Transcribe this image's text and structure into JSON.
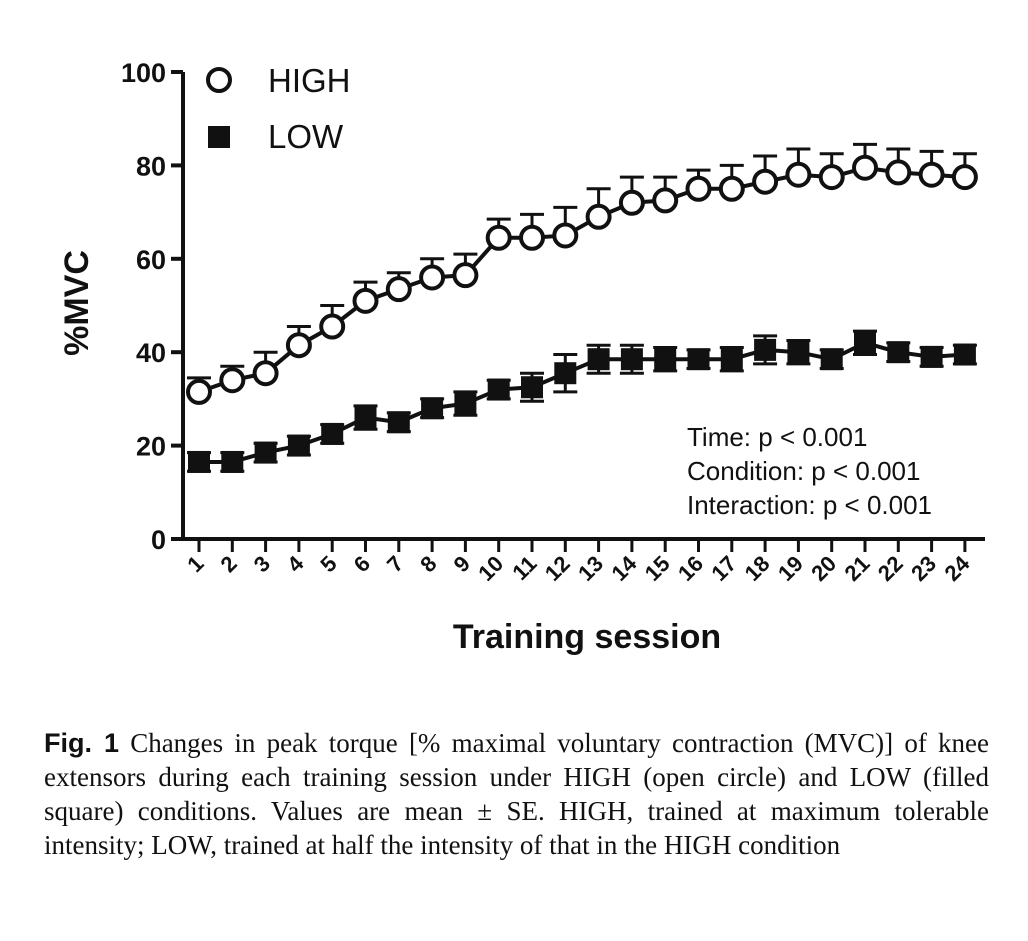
{
  "chart_data": {
    "type": "line",
    "xlabel": "Training session",
    "ylabel": "%MVC",
    "ylim": [
      0,
      100
    ],
    "yticks": [
      0,
      20,
      40,
      60,
      80,
      100
    ],
    "x": [
      1,
      2,
      3,
      4,
      5,
      6,
      7,
      8,
      9,
      10,
      11,
      12,
      13,
      14,
      15,
      16,
      17,
      18,
      19,
      20,
      21,
      22,
      23,
      24
    ],
    "series": [
      {
        "name": "HIGH",
        "marker": "open-circle",
        "values": [
          31.5,
          34,
          35.5,
          41.5,
          45.5,
          51,
          53.5,
          56,
          56.5,
          64.5,
          64.5,
          65,
          69,
          72,
          72.5,
          75,
          75,
          76.5,
          78,
          77.5,
          79.5,
          78.5,
          78,
          77.5
        ],
        "se": [
          3,
          3,
          4.5,
          4,
          4.5,
          4,
          3.5,
          4,
          4.5,
          4,
          5,
          6,
          6,
          5.5,
          5,
          4,
          5,
          5.5,
          5.5,
          5,
          5,
          5,
          5,
          5
        ]
      },
      {
        "name": "LOW",
        "marker": "filled-square",
        "values": [
          16.5,
          16.5,
          18.5,
          20,
          22.5,
          26,
          25,
          28,
          29,
          32,
          32.5,
          35.5,
          38.5,
          38.5,
          38.5,
          38.5,
          38.5,
          40.5,
          40,
          38.5,
          42,
          40,
          39,
          39.5
        ],
        "se": [
          2,
          2,
          2,
          2,
          2,
          2.5,
          2,
          2,
          2.5,
          2,
          3,
          4,
          3,
          3,
          2.5,
          2,
          2.5,
          3,
          2.5,
          2,
          2.5,
          2,
          2,
          2
        ]
      }
    ],
    "legend": {
      "placement": "top-left",
      "entries": [
        "HIGH",
        "LOW"
      ]
    },
    "annotations": [
      "Time: p < 0.001",
      "Condition: p < 0.001",
      "Interaction: p < 0.001"
    ],
    "grid": false
  },
  "caption": {
    "label": "Fig. 1",
    "text": "Changes in peak torque [% maximal voluntary contraction (MVC)] of knee extensors during each training session under HIGH (open circle) and LOW (filled square) conditions. Values are mean ± SE. HIGH, trained at maximum tolerable intensity; LOW, trained at half the intensity of that in the HIGH condition"
  }
}
